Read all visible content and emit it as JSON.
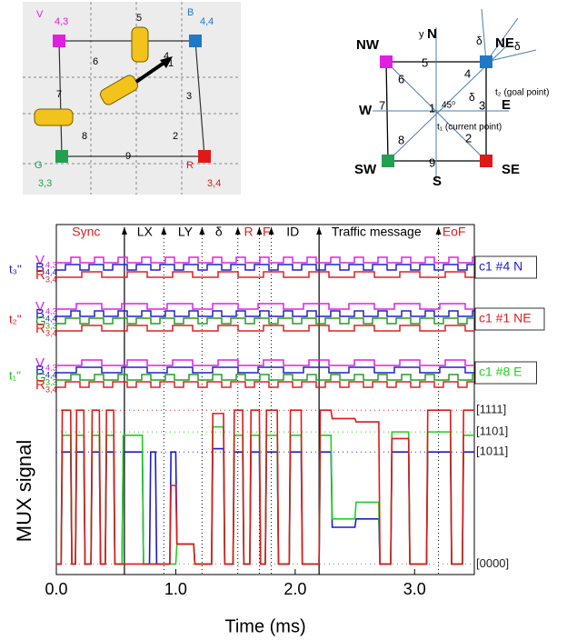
{
  "photo": {
    "labels": [
      "V",
      "4,3",
      "B",
      "4,4",
      "G",
      "3,3",
      "R",
      "3,4"
    ],
    "numbers": [
      "1",
      "2",
      "3",
      "4",
      "5",
      "6",
      "7",
      "8",
      "9"
    ]
  },
  "compass": {
    "directions": [
      "NW",
      "N",
      "NE",
      "W",
      "E",
      "SW",
      "S",
      "SE"
    ],
    "numbers": [
      "1",
      "2",
      "3",
      "4",
      "5",
      "6",
      "7",
      "8",
      "9"
    ],
    "y_label": "y",
    "deltas": [
      "δ",
      "δ",
      "δ"
    ],
    "angle": "45⁰",
    "current": "t₁ (current point)",
    "goal": "t₂ (goal point)"
  },
  "chart_data": {
    "type": "line",
    "x_label": "Time (ms)",
    "y_label": "MUX signal",
    "xlim": [
      0,
      3.5
    ],
    "ylim": [
      0,
      1
    ],
    "xticks": [
      {
        "value": 0,
        "label": "0.0"
      },
      {
        "value": 1,
        "label": "1.0"
      },
      {
        "value": 2,
        "label": "2.0"
      },
      {
        "value": 3,
        "label": "3.0"
      }
    ],
    "annotations": [
      {
        "text": "Sync",
        "x": 0.25,
        "color": "#e02020"
      },
      {
        "text": "LX",
        "x": 0.74,
        "color": "#000000"
      },
      {
        "text": "LY",
        "x": 1.08,
        "color": "#000000"
      },
      {
        "text": "δ",
        "x": 1.36,
        "color": "#000000"
      },
      {
        "text": "R",
        "x": 1.61,
        "color": "#e02020"
      },
      {
        "text": "F",
        "x": 1.76,
        "color": "#e02020"
      },
      {
        "text": "ID",
        "x": 1.98,
        "color": "#000000"
      },
      {
        "text": "Traffic message",
        "x": 2.68,
        "color": "#000000"
      },
      {
        "text": "EoF",
        "x": 3.33,
        "color": "#e02020"
      }
    ],
    "dividers": [
      {
        "x": 0.57,
        "style": "solid"
      },
      {
        "x": 0.9,
        "style": "dotted"
      },
      {
        "x": 1.22,
        "style": "dotted"
      },
      {
        "x": 1.52,
        "style": "dotted"
      },
      {
        "x": 1.7,
        "style": "dotted"
      },
      {
        "x": 1.8,
        "style": "dotted"
      },
      {
        "x": 2.2,
        "style": "solid"
      },
      {
        "x": 3.2,
        "style": "dotted"
      }
    ],
    "groups": [
      {
        "name": "t₃''",
        "color": "#2020d0",
        "box": "c1 #4 N",
        "box_color": "#2020d0",
        "channels": [
          {
            "letter": "V",
            "sub": "4,3",
            "color": "#e020e0"
          },
          {
            "letter": "B",
            "sub": "4,4",
            "color": "#2020d0"
          },
          {
            "letter": "R",
            "sub": "3,4",
            "color": "#e02020"
          }
        ]
      },
      {
        "name": "t₂''",
        "color": "#e02020",
        "box": "c1 #1 NE",
        "box_color": "#e02020",
        "channels": [
          {
            "letter": "V",
            "sub": "4,3",
            "color": "#e020e0"
          },
          {
            "letter": "B",
            "sub": "4,4",
            "color": "#2020d0"
          },
          {
            "letter": "G",
            "sub": "3,3",
            "color": "#20a020"
          },
          {
            "letter": "R",
            "sub": "3,4",
            "color": "#e02020"
          }
        ]
      },
      {
        "name": "t₁''",
        "color": "#20c020",
        "box": "c1 #8 E",
        "box_color": "#20d020",
        "channels": [
          {
            "letter": "V",
            "sub": "4,3",
            "color": "#e020e0"
          },
          {
            "letter": "B",
            "sub": "4,4",
            "color": "#2020d0"
          },
          {
            "letter": "G",
            "sub": "3,3",
            "color": "#20a020"
          },
          {
            "letter": "R",
            "sub": "3,4",
            "color": "#e02020"
          }
        ]
      }
    ],
    "levels": [
      {
        "label": "[1111]",
        "value": 0.95,
        "color": "#e02020"
      },
      {
        "label": "[1101]",
        "value": 0.82,
        "color": "#20d020"
      },
      {
        "label": "[1011]",
        "value": 0.7,
        "color": "#2020d0"
      },
      {
        "label": "[0000]",
        "value": 0.03,
        "color": "#888888"
      }
    ],
    "x": [
      0,
      0.04,
      0.05,
      0.12,
      0.13,
      0.16,
      0.17,
      0.23,
      0.24,
      0.29,
      0.3,
      0.36,
      0.37,
      0.41,
      0.42,
      0.48,
      0.49,
      0.55,
      0.56,
      0.72,
      0.73,
      0.78,
      0.79,
      0.83,
      0.84,
      0.95,
      0.96,
      1.0,
      1.01,
      1.15,
      1.16,
      1.2,
      1.21,
      1.3,
      1.31,
      1.4,
      1.41,
      1.48,
      1.49,
      1.56,
      1.57,
      1.62,
      1.63,
      1.7,
      1.71,
      1.75,
      1.76,
      1.85,
      1.86,
      1.95,
      1.96,
      2.05,
      2.06,
      2.2,
      2.21,
      2.3,
      2.31,
      2.5,
      2.51,
      2.7,
      2.71,
      2.8,
      2.81,
      2.95,
      2.96,
      3.1,
      3.11,
      3.3,
      3.31,
      3.4,
      3.41,
      3.5
    ],
    "series": [
      {
        "color": "#1a1ad0",
        "values": [
          0.03,
          0.03,
          0.7,
          0.7,
          0.03,
          0.03,
          0.7,
          0.7,
          0.03,
          0.03,
          0.7,
          0.7,
          0.03,
          0.03,
          0.7,
          0.7,
          0.03,
          0.03,
          0.7,
          0.7,
          0.03,
          0.03,
          0.7,
          0.7,
          0.03,
          0.03,
          0.7,
          0.7,
          0.15,
          0.15,
          0.03,
          0.03,
          0.03,
          0.03,
          0.72,
          0.72,
          0.03,
          0.03,
          0.7,
          0.7,
          0.03,
          0.03,
          0.7,
          0.7,
          0.03,
          0.03,
          0.7,
          0.7,
          0.03,
          0.03,
          0.7,
          0.7,
          0.03,
          0.03,
          0.7,
          0.7,
          0.25,
          0.25,
          0.3,
          0.3,
          0.03,
          0.03,
          0.7,
          0.7,
          0.03,
          0.03,
          0.7,
          0.7,
          0.03,
          0.03,
          0.7,
          0.7
        ]
      },
      {
        "color": "#20d020",
        "values": [
          0.03,
          0.03,
          0.8,
          0.8,
          0.03,
          0.03,
          0.8,
          0.8,
          0.03,
          0.03,
          0.8,
          0.8,
          0.03,
          0.03,
          0.8,
          0.8,
          0.03,
          0.03,
          0.8,
          0.8,
          0.03,
          0.03,
          0.03,
          0.03,
          0.03,
          0.03,
          0.03,
          0.03,
          0.15,
          0.15,
          0.03,
          0.03,
          0.03,
          0.03,
          0.85,
          0.85,
          0.03,
          0.03,
          0.8,
          0.8,
          0.03,
          0.03,
          0.8,
          0.8,
          0.03,
          0.03,
          0.8,
          0.8,
          0.03,
          0.03,
          0.8,
          0.8,
          0.03,
          0.03,
          0.8,
          0.8,
          0.3,
          0.3,
          0.4,
          0.4,
          0.03,
          0.03,
          0.82,
          0.82,
          0.03,
          0.03,
          0.82,
          0.82,
          0.03,
          0.03,
          0.8,
          0.8
        ]
      },
      {
        "color": "#e01818",
        "values": [
          0.03,
          0.03,
          0.95,
          0.95,
          0.03,
          0.03,
          0.95,
          0.95,
          0.03,
          0.03,
          0.95,
          0.95,
          0.03,
          0.03,
          0.95,
          0.95,
          0.03,
          0.03,
          0.03,
          0.03,
          0.03,
          0.03,
          0.03,
          0.03,
          0.03,
          0.03,
          0.5,
          0.5,
          0.15,
          0.15,
          0.03,
          0.03,
          0.03,
          0.03,
          0.93,
          0.93,
          0.03,
          0.03,
          0.95,
          0.95,
          0.03,
          0.03,
          0.95,
          0.95,
          0.03,
          0.03,
          0.95,
          0.95,
          0.03,
          0.03,
          0.95,
          0.95,
          0.03,
          0.03,
          0.95,
          0.95,
          0.9,
          0.9,
          0.88,
          0.88,
          0.03,
          0.03,
          0.78,
          0.78,
          0.03,
          0.03,
          0.95,
          0.95,
          0.03,
          0.03,
          0.95,
          0.95
        ]
      }
    ]
  }
}
